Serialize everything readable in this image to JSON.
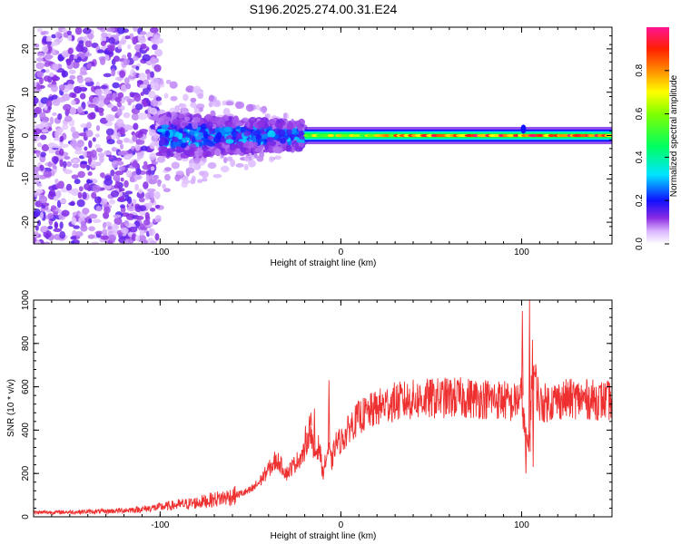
{
  "title": "S196.2025.274.00.31.E24",
  "chart_data": [
    {
      "type": "heatmap",
      "xlabel": "Height of straight line (km)",
      "ylabel": "Frequency (Hz)",
      "xlim": [
        -170,
        150
      ],
      "ylim": [
        -25,
        25
      ],
      "xticks": [
        -100,
        0,
        100
      ],
      "yticks": [
        -20,
        -10,
        0,
        10,
        20
      ],
      "description": "Spectral amplitude vs height: scattered weak energy below -100 km, concentrated band near 0 Hz from -100 to -20 km, narrow strong line at ~0 Hz above -20 km",
      "segments": [
        {
          "x_range": [
            -170,
            -100
          ],
          "freq_spread_hz": 25,
          "amplitude": 0.12
        },
        {
          "x_range": [
            -100,
            -20
          ],
          "freq_spread_hz": 6,
          "amplitude": 0.3
        },
        {
          "x_range": [
            -20,
            150
          ],
          "freq_spread_hz": 1.5,
          "amplitude": 0.95
        }
      ],
      "colorbar": {
        "label": "Normalized spectral amplitude",
        "range": [
          0,
          1
        ],
        "ticks": [
          0.0,
          0.2,
          0.4,
          0.6,
          0.8
        ]
      }
    },
    {
      "type": "line",
      "xlabel": "Height of straight line (km)",
      "ylabel": "SNR (10 * v/v)",
      "xlim": [
        -170,
        150
      ],
      "ylim": [
        0,
        1000
      ],
      "xticks": [
        -100,
        0,
        100
      ],
      "yticks": [
        0,
        200,
        400,
        600,
        800,
        1000
      ],
      "series": [
        {
          "name": "SNR",
          "color": "#ee3030",
          "x": [
            -170,
            -150,
            -130,
            -110,
            -100,
            -90,
            -80,
            -70,
            -60,
            -50,
            -45,
            -40,
            -35,
            -30,
            -25,
            -20,
            -17,
            -15,
            -12,
            -10,
            -7,
            -5,
            -3,
            0,
            3,
            5,
            8,
            10,
            15,
            20,
            25,
            30,
            40,
            50,
            60,
            70,
            80,
            90,
            95,
            100,
            102,
            104,
            106,
            110,
            120,
            130,
            140,
            150
          ],
          "y": [
            20,
            22,
            25,
            35,
            45,
            55,
            65,
            80,
            95,
            120,
            160,
            220,
            260,
            200,
            250,
            300,
            420,
            280,
            330,
            200,
            310,
            250,
            340,
            350,
            380,
            420,
            440,
            460,
            480,
            500,
            520,
            530,
            540,
            545,
            550,
            548,
            545,
            540,
            520,
            560,
            380,
            300,
            700,
            520,
            540,
            545,
            540,
            535
          ]
        }
      ]
    }
  ]
}
